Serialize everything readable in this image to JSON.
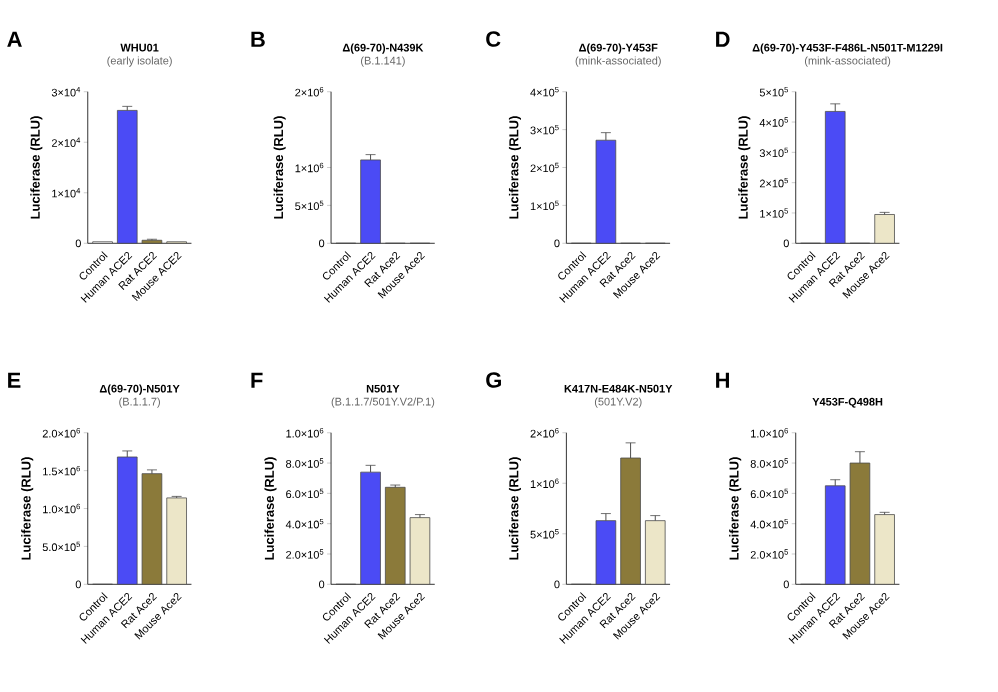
{
  "chart_data": [
    {
      "type": "bar",
      "title": "WHU01",
      "subtitle": "(early isolate)",
      "ylabel": "Luciferase (RLU)",
      "annotations": [
        "A"
      ],
      "categories": [
        "Control",
        "Human ACE2",
        "Rat ACE2",
        "Mouse ACE2"
      ],
      "values": [
        300,
        26300,
        600,
        300
      ],
      "errors": [
        null,
        800,
        200,
        null
      ],
      "colors": [
        "#ffffff",
        "#4b4bf5",
        "#8b7a3a",
        "#ece6c8"
      ],
      "ylim": [
        0,
        30000
      ],
      "yticks": [
        0,
        {
          "value": 10000,
          "label": "1×10$^{4}$"
        },
        {
          "value": 20000,
          "label": "2×10$^{4}$"
        },
        {
          "value": 30000,
          "label": "3×10$^{4}$"
        }
      ]
    },
    {
      "type": "bar",
      "title": "Δ(69-70)-N439K",
      "subtitle": "(B.1.141)",
      "ylabel": "Luciferase (RLU)",
      "annotations": [
        "B"
      ],
      "categories": [
        "Control",
        "Human ACE2",
        "Rat Ace2",
        "Mouse Ace2"
      ],
      "values": [
        0,
        1100000,
        0,
        0
      ],
      "errors": [
        null,
        70000,
        null,
        null
      ],
      "colors": [
        "#ffffff",
        "#4b4bf5",
        "#8b7a3a",
        "#ece6c8"
      ],
      "ylim": [
        0,
        2000000
      ],
      "yticks": [
        0,
        {
          "value": 500000,
          "label": "5×10$^{5}$"
        },
        {
          "value": 1000000,
          "label": "1×10$^{6}$"
        },
        {
          "value": 2000000,
          "label": "2×10$^{6}$"
        }
      ]
    },
    {
      "type": "bar",
      "title": "Δ(69-70)-Y453F",
      "subtitle": "(mink-associated)",
      "ylabel": "Luciferase (RLU)",
      "annotations": [
        "C"
      ],
      "categories": [
        "Control",
        "Human ACE2",
        "Rat Ace2",
        "Mouse Ace2"
      ],
      "values": [
        0,
        272000,
        0,
        0
      ],
      "errors": [
        null,
        20000,
        null,
        null
      ],
      "colors": [
        "#ffffff",
        "#4b4bf5",
        "#8b7a3a",
        "#ece6c8"
      ],
      "ylim": [
        0,
        400000
      ],
      "yticks": [
        0,
        {
          "value": 100000,
          "label": "1×10$^{5}$"
        },
        {
          "value": 200000,
          "label": "2×10$^{5}$"
        },
        {
          "value": 300000,
          "label": "3×10$^{5}$"
        },
        {
          "value": 400000,
          "label": "4×10$^{5}$"
        }
      ]
    },
    {
      "type": "bar",
      "title": "Δ(69-70)-Y453F-F486L-N501T-M1229I",
      "subtitle": "(mink-associated)",
      "ylabel": "Luciferase (RLU)",
      "annotations": [
        "D"
      ],
      "categories": [
        "Control",
        "Human ACE2",
        "Rat Ace2",
        "Mouse Ace2"
      ],
      "values": [
        0,
        435000,
        0,
        95000
      ],
      "errors": [
        null,
        25000,
        null,
        7000
      ],
      "colors": [
        "#ffffff",
        "#4b4bf5",
        "#8b7a3a",
        "#ece6c8"
      ],
      "ylim": [
        0,
        500000
      ],
      "yticks": [
        0,
        {
          "value": 100000,
          "label": "1×10$^{5}$"
        },
        {
          "value": 200000,
          "label": "2×10$^{5}$"
        },
        {
          "value": 300000,
          "label": "3×10$^{5}$"
        },
        {
          "value": 400000,
          "label": "4×10$^{5}$"
        },
        {
          "value": 500000,
          "label": "5×10$^{5}$"
        }
      ]
    },
    {
      "type": "bar",
      "title": "Δ(69-70)-N501Y",
      "subtitle": "(B.1.1.7)",
      "ylabel": "Luciferase (RLU)",
      "annotations": [
        "E"
      ],
      "categories": [
        "Control",
        "Human ACE2",
        "Rat Ace2",
        "Mouse Ace2"
      ],
      "values": [
        0,
        1680000,
        1460000,
        1140000
      ],
      "errors": [
        null,
        80000,
        50000,
        20000
      ],
      "colors": [
        "#ffffff",
        "#4b4bf5",
        "#8b7a3a",
        "#ece6c8"
      ],
      "ylim": [
        0,
        2000000
      ],
      "yticks": [
        0,
        {
          "value": 500000,
          "label": "5.0×10$^{5}$"
        },
        {
          "value": 1000000,
          "label": "1.0×10$^{6}$"
        },
        {
          "value": 1500000,
          "label": "1.5×10$^{6}$"
        },
        {
          "value": 2000000,
          "label": "2.0×10$^{6}$"
        }
      ]
    },
    {
      "type": "bar",
      "title": "N501Y",
      "subtitle": "(B.1.1.7/501Y.V2/P.1)",
      "ylabel": "Luciferase (RLU)",
      "annotations": [
        "F"
      ],
      "categories": [
        "Control",
        "Human ACE2",
        "Rat Ace2",
        "Mouse Ace2"
      ],
      "values": [
        0,
        740000,
        640000,
        440000
      ],
      "errors": [
        null,
        45000,
        15000,
        20000
      ],
      "colors": [
        "#ffffff",
        "#4b4bf5",
        "#8b7a3a",
        "#ece6c8"
      ],
      "ylim": [
        0,
        1000000
      ],
      "yticks": [
        0,
        {
          "value": 200000,
          "label": "2.0×10$^{5}$"
        },
        {
          "value": 400000,
          "label": "4.0×10$^{5}$"
        },
        {
          "value": 600000,
          "label": "6.0×10$^{5}$"
        },
        {
          "value": 800000,
          "label": "8.0×10$^{5}$"
        },
        {
          "value": 1000000,
          "label": "1.0×10$^{6}$"
        }
      ]
    },
    {
      "type": "bar",
      "title": "K417N-E484K-N501Y",
      "subtitle": "(501Y.V2)",
      "ylabel": "Luciferase (RLU)",
      "annotations": [
        "G"
      ],
      "categories": [
        "Control",
        "Human ACE2",
        "Rat Ace2",
        "Mouse Ace2"
      ],
      "values": [
        0,
        630000,
        1250000,
        630000
      ],
      "errors": [
        null,
        70000,
        150000,
        50000
      ],
      "colors": [
        "#ffffff",
        "#4b4bf5",
        "#8b7a3a",
        "#ece6c8"
      ],
      "ylim": [
        0,
        1500000
      ],
      "yticks": [
        0,
        {
          "value": 500000,
          "label": "5×10$^{5}$"
        },
        {
          "value": 1000000,
          "label": "1×10$^{6}$"
        },
        {
          "value": 1500000,
          "label": "2×10$^{6}$"
        }
      ]
    },
    {
      "type": "bar",
      "title": "Y453F-Q498H",
      "ylabel": "Luciferase (RLU)",
      "annotations": [
        "H"
      ],
      "categories": [
        "Control",
        "Human ACE2",
        "Rat Ace2",
        "Mouse Ace2"
      ],
      "values": [
        0,
        650000,
        800000,
        460000
      ],
      "errors": [
        null,
        40000,
        75000,
        15000
      ],
      "colors": [
        "#ffffff",
        "#4b4bf5",
        "#8b7a3a",
        "#ece6c8"
      ],
      "ylim": [
        0,
        1000000
      ],
      "yticks": [
        0,
        {
          "value": 200000,
          "label": "2.0×10$^{5}$"
        },
        {
          "value": 400000,
          "label": "4.0×10$^{5}$"
        },
        {
          "value": 600000,
          "label": "6.0×10$^{5}$"
        },
        {
          "value": 800000,
          "label": "8.0×10$^{5}$"
        },
        {
          "value": 1000000,
          "label": "1.0×10$^{6}$"
        }
      ]
    }
  ]
}
